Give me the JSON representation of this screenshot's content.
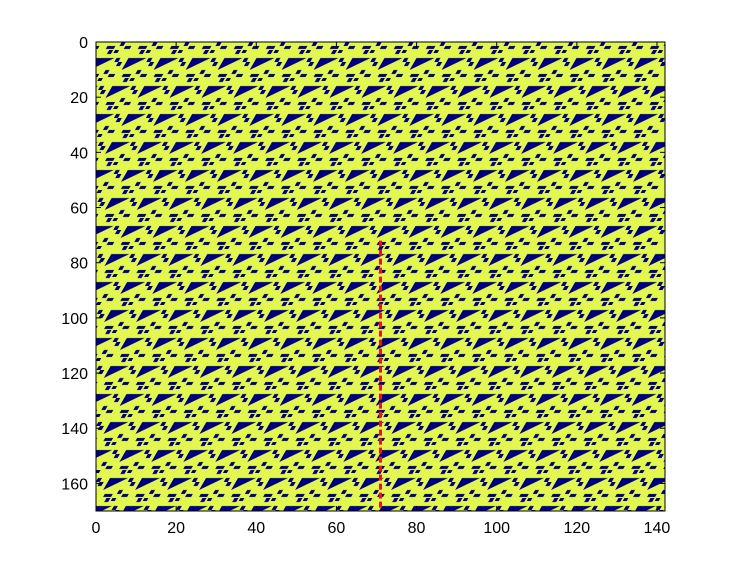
{
  "chart_data": {
    "type": "image",
    "xlim": [
      0,
      142
    ],
    "ylim": [
      0,
      170
    ],
    "xticks": [
      0,
      20,
      40,
      60,
      80,
      100,
      120,
      140
    ],
    "yticks": [
      0,
      20,
      40,
      60,
      80,
      100,
      120,
      140,
      160
    ],
    "y_reversed": true,
    "background_color": "#e2f74f",
    "cell_color": "#00007f",
    "series": [
      {
        "color": "#e8141e",
        "x": [
          71,
          71
        ],
        "y": [
          72,
          170
        ]
      }
    ]
  }
}
